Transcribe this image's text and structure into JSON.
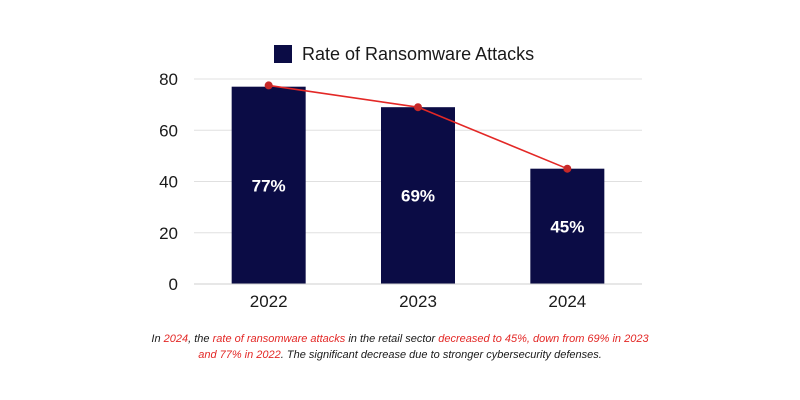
{
  "chart_data": {
    "type": "bar",
    "title": "",
    "xlabel": "",
    "ylabel": "",
    "ylim": [
      0,
      80
    ],
    "yticks": [
      0,
      20,
      40,
      60,
      80
    ],
    "categories": [
      "2022",
      "2023",
      "2024"
    ],
    "series": [
      {
        "name": "Rate of Ransomware Attacks",
        "values": [
          77,
          69,
          45
        ],
        "data_labels": [
          "77%",
          "69%",
          "45%"
        ],
        "color": "#0b0c45"
      }
    ],
    "trend_line": {
      "values": [
        77.5,
        69,
        45
      ],
      "color": "#e32826"
    },
    "legend": {
      "position": "top-center"
    },
    "grid": true
  },
  "caption": {
    "parts": [
      {
        "text": "In ",
        "highlight": false
      },
      {
        "text": "2024",
        "highlight": true
      },
      {
        "text": ", the ",
        "highlight": false
      },
      {
        "text": "rate of ransomware attacks",
        "highlight": true
      },
      {
        "text": " in the retail sector ",
        "highlight": false
      },
      {
        "text": "decreased to 45%, down from 69% in 2023 and 77% in 2022",
        "highlight": true
      },
      {
        "text": ". The significant decrease due to stronger cybersecurity defenses.",
        "highlight": false
      }
    ]
  },
  "colors": {
    "bar": "#0b0c45",
    "trend": "#e32826",
    "highlight": "#e32826",
    "grid": "#e0e0e0",
    "axis": "#1a1a1a"
  }
}
